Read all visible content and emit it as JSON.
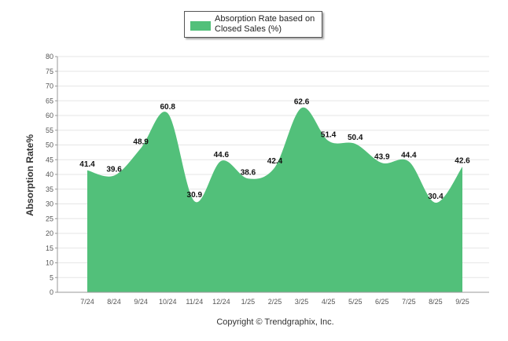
{
  "chart_data": {
    "type": "area",
    "title": "",
    "legend": [
      "Absorption Rate based on Closed Sales (%)"
    ],
    "legend_position": "top-center",
    "ylabel": "Absorption Rate%",
    "xlabel": "",
    "ylim": [
      0,
      80
    ],
    "yticks": [
      0,
      5,
      10,
      15,
      20,
      25,
      30,
      35,
      40,
      45,
      50,
      55,
      60,
      65,
      70,
      75,
      80
    ],
    "grid": true,
    "categories": [
      "7/24",
      "8/24",
      "9/24",
      "10/24",
      "11/24",
      "12/24",
      "1/25",
      "2/25",
      "3/25",
      "4/25",
      "5/25",
      "6/25",
      "7/25",
      "8/25",
      "9/25"
    ],
    "series": [
      {
        "name": "Absorption Rate based on Closed Sales (%)",
        "values": [
          41.4,
          39.6,
          48.9,
          60.8,
          30.9,
          44.6,
          38.6,
          42.4,
          62.6,
          51.4,
          50.4,
          43.9,
          44.4,
          30.4,
          42.6
        ],
        "labels": [
          "41.4",
          "39.6",
          "48.9",
          "60.8",
          "30.9",
          "44.6",
          "38.6",
          "42.4",
          "62.6",
          "51.4",
          "50.4",
          "43.9",
          "44.4",
          "30.4",
          "42.6"
        ],
        "color": "#52c07a"
      }
    ],
    "footer": "Copyright © Trendgraphix, Inc."
  },
  "colors": {
    "fill": "#52c07a",
    "grid": "#e6e6e6",
    "axis": "#999999"
  }
}
